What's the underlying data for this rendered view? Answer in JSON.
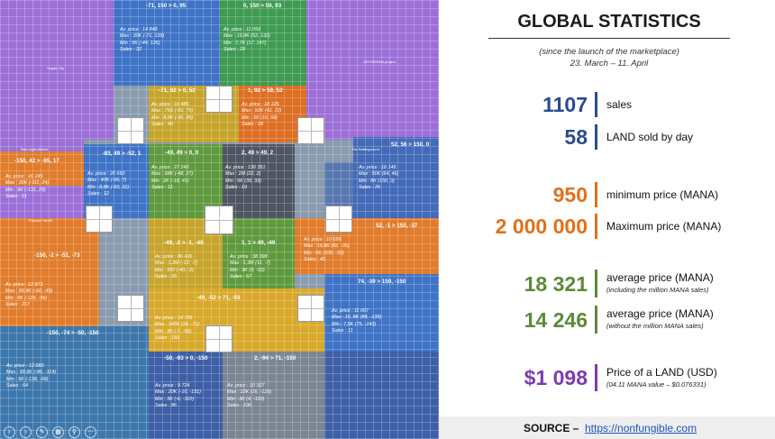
{
  "stats": {
    "title": "GLOBAL STATISTICS",
    "subtitle": "(since the launch of the marketplace)",
    "period": "23. March – 11. April",
    "metrics": [
      {
        "value": "1107",
        "label": "sales",
        "note": "",
        "color": "#2c4a8f"
      },
      {
        "value": "58",
        "label": "LAND sold by day",
        "note": "",
        "color": "#2c4a8f"
      },
      {
        "value": "950",
        "label": "minimum price (MANA)",
        "note": "",
        "color": "#e0711b"
      },
      {
        "value": "2 000 000",
        "label": "Maximum price (MANA)",
        "note": "",
        "color": "#e0711b"
      },
      {
        "value": "18 321",
        "label": "average price (MANA)",
        "note": "(including the million MANA sales)",
        "color": "#5b8a38"
      },
      {
        "value": "14 246",
        "label": "average price (MANA)",
        "note": "(without the million MANA sales)",
        "color": "#5b8a38"
      },
      {
        "value": "$1 098",
        "label": "Price of a LAND (USD)",
        "note": "(04.11 MANA value – $0.076331)",
        "color": "#7d3bb0"
      }
    ],
    "source_label": "SOURCE –",
    "source_link": "https://nonfungible.com"
  },
  "map": {
    "districts": [
      "Vegas City",
      "AETHERIAN project",
      "Red Light district",
      "The Battleground",
      "Fashion Street",
      "Genesis Plaza"
    ],
    "regions": [
      {
        "title": "-71, 150 > 0, 95",
        "stats": [
          "Av. price : 14 848",
          "Max : 30K (-71, 139)",
          "Min : 5K (-44, 126)",
          "Sales : 32"
        ]
      },
      {
        "title": "0, 150 > 59, 93",
        "stats": [
          "Av. price : 11 059",
          "Max : 19,9K (52, 132)",
          "Min : 7,7K (17, 147)",
          "Sales : 29"
        ]
      },
      {
        "title": "-71, 92 > 0, 52",
        "stats": [
          "Av. price : 16 486",
          "Max : 75K (-53, 79)",
          "Min : 8,8K (-36, 89)",
          "Sales : 40"
        ]
      },
      {
        "title": "1, 92 > 59, 52",
        "stats": [
          "Av. price : 18 125",
          "Max : 50K (42, 72)",
          "Min : 5K (16, 68)",
          "Sales : 28"
        ]
      },
      {
        "title": "-150, 42 > -95, 17",
        "stats": [
          "Av. price : 16 145",
          "Max : 30K (-111, 24)",
          "Min : 9K (-131, 29)",
          "Sales : 11"
        ]
      },
      {
        "title": "-83, 49 > -52, 1",
        "stats": [
          "Av. price : 20 650",
          "Max : 40K (-56, 7)",
          "Min : 8,8K (-60, 32)",
          "Sales : 12"
        ]
      },
      {
        "title": "-49, 49 > 0, 0",
        "stats": [
          "Av. price : 27 246",
          "Max : 68K (-48, 27)",
          "Min : 2K (-18, 41)",
          "Sales : 11"
        ]
      },
      {
        "title": "2, 49 > 49, 2",
        "stats": [
          "Av. price : 136 351",
          "Max : 2M (22, 2)",
          "Min : 5K (35, 33)",
          "Sales : 19"
        ]
      },
      {
        "title": "52, 56 > 150, 0",
        "stats": [
          "Av. price : 16 146",
          "Max : 50K (64, 46)",
          "Min : 8K (150, 3)",
          "Sales : 26"
        ]
      },
      {
        "title": "52, -1 > 150, -37",
        "stats": [
          "Av. price : 10 699",
          "Max : 19,8K (82, -36)",
          "Min : 6K (106, -33)",
          "Sales : 45"
        ]
      },
      {
        "title": "-150, -2 > -51, -73",
        "stats": [
          "Av. price : 12 873",
          "Max : 99,9K (-60, -49)",
          "Min : 5K (-115, -56)",
          "Sales : 217"
        ]
      },
      {
        "title": "-49, -2 > -1, -49",
        "stats": [
          "Av. price : 86 436",
          "Max : 1,2M (-12, -7)",
          "Min : 950 (-40, -2)",
          "Sales : 26"
        ]
      },
      {
        "title": "1, 1 > 49, -49",
        "stats": [
          "Av. price : 38 398",
          "Max : 1,3M (11, -7)",
          "Min : 3K (9, -32)",
          "Sales : 67"
        ]
      },
      {
        "title": "74, -39 > 150, -150",
        "stats": [
          "Av. price : 11 067",
          "Max : 16, 8K (84, -139)",
          "Min : 7,5K (75, -143)",
          "Sales : 11"
        ]
      },
      {
        "title": "-49, -52 > 71, -93",
        "stats": [
          "Av. price : 14 706",
          "Max : 145K (18, -71)",
          "Min : 3K (-7, -55)",
          "Sales : 183"
        ]
      },
      {
        "title": "-150, -74 > -50, -150",
        "stats": [
          "Av. price : 12 683",
          "Max : 99,9K (-86, -114)",
          "Min : 5K (-138, -99)",
          "Sales : 64"
        ]
      },
      {
        "title": "-50, -93 > 0, -150",
        "stats": [
          "Av. price : 9 724",
          "Max : 20K (-16, -131)",
          "Min : 3K (-6, -110)",
          "Sales : 86"
        ]
      },
      {
        "title": "2, -94 > 71, -150",
        "stats": [
          "Av. price : 10 327",
          "Max : 22K (16, -125)",
          "Min : 3K (4, -110)",
          "Sales : 196"
        ]
      }
    ]
  }
}
